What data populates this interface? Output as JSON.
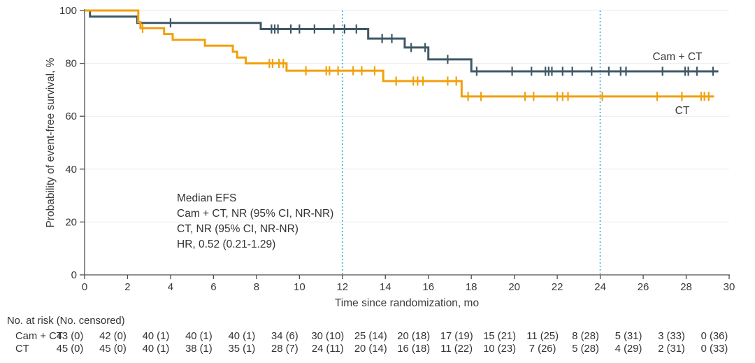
{
  "chart_data": {
    "type": "line",
    "subtype": "kaplan-meier-step",
    "title": "",
    "xlabel": "Time since randomization, mo",
    "ylabel": "Probability of event-free survival, %",
    "xlim": [
      0,
      30
    ],
    "ylim": [
      0,
      100
    ],
    "xticks": [
      0,
      2,
      4,
      6,
      8,
      10,
      12,
      14,
      16,
      18,
      20,
      22,
      24,
      26,
      28,
      30
    ],
    "yticks": [
      0,
      20,
      40,
      60,
      80,
      100
    ],
    "grid": "horizontal-light",
    "reference_lines_x": [
      12,
      24
    ],
    "reference_line_color": "#4CB8E8",
    "grid_color": "#ebebeb",
    "axis_color": "#4f4f4f",
    "series": [
      {
        "name": "Cam + CT",
        "color": "#3F5866",
        "steps": [
          [
            0,
            100
          ],
          [
            0.25,
            97.7
          ],
          [
            2.45,
            95.3
          ],
          [
            8.2,
            93.0
          ],
          [
            13.2,
            89.4
          ],
          [
            14.9,
            86.0
          ],
          [
            16.0,
            81.5
          ],
          [
            18.0,
            77.0
          ]
        ],
        "end_month": 29.5,
        "censor_months": [
          4.0,
          8.7,
          8.85,
          9.0,
          9.6,
          10.0,
          10.7,
          11.6,
          12.1,
          12.65,
          13.85,
          14.3,
          15.2,
          15.85,
          16.9,
          18.25,
          19.9,
          20.8,
          21.45,
          21.6,
          21.75,
          22.25,
          22.7,
          23.6,
          24.4,
          24.95,
          25.2,
          26.9,
          27.95,
          28.1,
          28.5,
          29.25
        ]
      },
      {
        "name": "CT",
        "color": "#F2A00D",
        "steps": [
          [
            0,
            100
          ],
          [
            2.5,
            95.6
          ],
          [
            2.6,
            93.3
          ],
          [
            3.7,
            91.1
          ],
          [
            4.1,
            88.9
          ],
          [
            5.6,
            86.7
          ],
          [
            6.9,
            84.4
          ],
          [
            7.1,
            82.2
          ],
          [
            7.5,
            80.0
          ],
          [
            9.4,
            77.2
          ],
          [
            13.9,
            73.3
          ],
          [
            17.55,
            67.5
          ]
        ],
        "end_month": 29.3,
        "censor_months": [
          2.7,
          8.6,
          8.75,
          9.05,
          9.25,
          10.3,
          11.25,
          11.4,
          11.8,
          12.5,
          12.9,
          13.5,
          14.5,
          15.3,
          15.5,
          15.75,
          16.9,
          17.3,
          17.85,
          18.45,
          20.5,
          20.9,
          22.0,
          22.25,
          22.5,
          24.1,
          26.65,
          27.8,
          28.7,
          28.85,
          29.05
        ]
      }
    ],
    "curve_labels": [
      {
        "text": "Cam + CT"
      },
      {
        "text": "CT"
      }
    ],
    "annotation": {
      "lines": [
        "Median EFS",
        "Cam + CT, NR (95% CI, NR-NR)",
        "CT, NR (95% CI, NR-NR)",
        "HR, 0.52 (0.21-1.29)"
      ]
    }
  },
  "risk_table": {
    "header": "No. at risk (No. censored)",
    "rows": [
      {
        "label": "Cam + CT",
        "values": [
          "43 (0)",
          "42 (0)",
          "40 (1)",
          "40 (1)",
          "40 (1)",
          "34 (6)",
          "30 (10)",
          "25 (14)",
          "20 (18)",
          "17 (19)",
          "15 (21)",
          "11 (25)",
          "8 (28)",
          "5 (31)",
          "3 (33)",
          "0 (36)"
        ]
      },
      {
        "label": "CT",
        "values": [
          "45 (0)",
          "45 (0)",
          "40 (1)",
          "38 (1)",
          "35 (1)",
          "28 (7)",
          "24 (11)",
          "20 (14)",
          "16 (18)",
          "11 (22)",
          "10 (23)",
          "7 (26)",
          "5 (28)",
          "4 (29)",
          "2 (31)",
          "0 (33)"
        ]
      }
    ]
  }
}
